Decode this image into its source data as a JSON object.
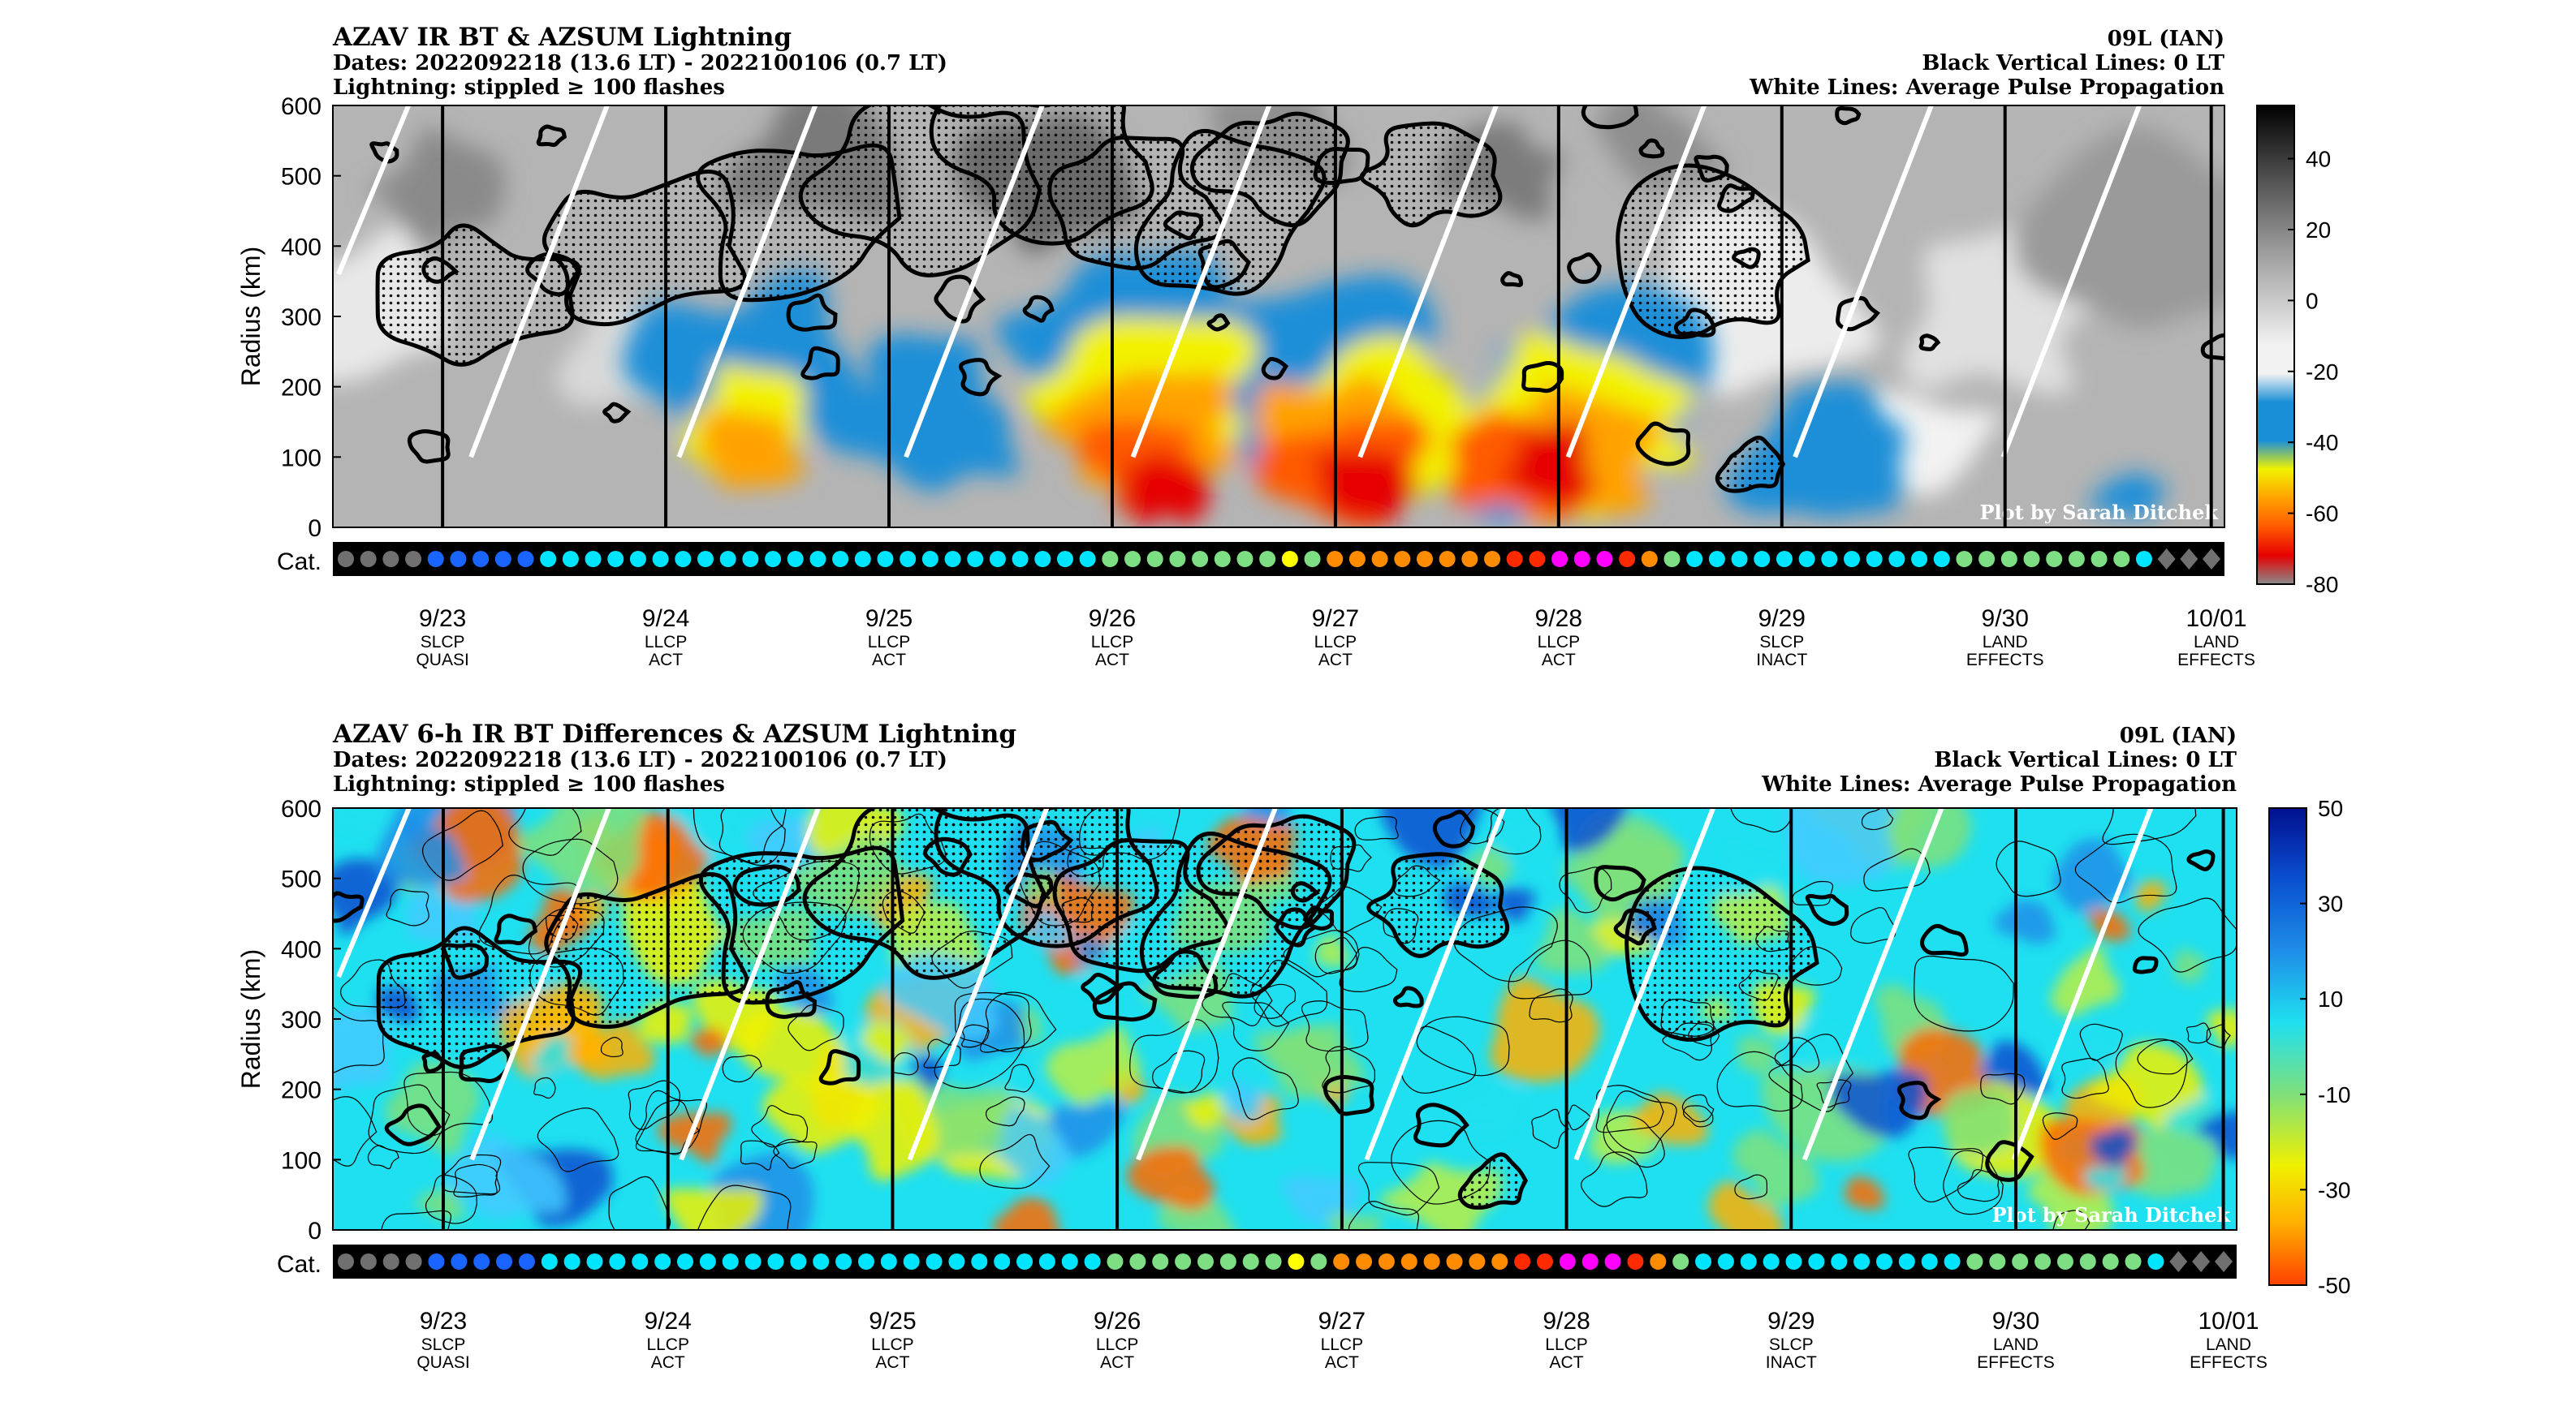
{
  "chart_data": [
    {
      "type": "heatmap",
      "title": "AZAV IR BT & AZSUM Lightning",
      "subtitle_dates": "Dates: 2022092218 (13.6 LT) - 2022100106 (0.7 LT)",
      "subtitle_lightning": "Lightning: stippled ≥ 100 flashes",
      "storm": "09L (IAN)",
      "note_black_lines": "Black Vertical Lines: 0 LT",
      "note_white_lines": "White Lines: Average Pulse Propagation",
      "credit": "Plot by Sarah Ditchek",
      "ylabel": "Radius (km)",
      "ylim": [
        0,
        600
      ],
      "yticks": [
        0,
        100,
        200,
        300,
        400,
        500,
        600
      ],
      "colorbar_ticks": [
        40,
        20,
        0,
        -20,
        -40,
        -60,
        -80
      ],
      "colorbar_range": [
        -80,
        55
      ],
      "colormap": "gray-to-jet (warm gray, cold blue-yellow-red)",
      "category_label": "Cat.",
      "x_ticks": [
        {
          "date": "9/23",
          "line1": "SLCP",
          "line2": "QUASI"
        },
        {
          "date": "9/24",
          "line1": "LLCP",
          "line2": "ACT"
        },
        {
          "date": "9/25",
          "line1": "LLCP",
          "line2": "ACT"
        },
        {
          "date": "9/26",
          "line1": "LLCP",
          "line2": "ACT"
        },
        {
          "date": "9/27",
          "line1": "LLCP",
          "line2": "ACT"
        },
        {
          "date": "9/28",
          "line1": "LLCP",
          "line2": "ACT"
        },
        {
          "date": "9/29",
          "line1": "SLCP",
          "line2": "INACT"
        },
        {
          "date": "9/30",
          "line1": "LAND",
          "line2": "EFFECTS"
        },
        {
          "date": "10/01",
          "line1": "LAND",
          "line2": "EFFECTS"
        }
      ]
    },
    {
      "type": "heatmap",
      "title": "AZAV 6-h IR BT Differences & AZSUM Lightning",
      "subtitle_dates": "Dates: 2022092218 (13.6 LT) - 2022100106 (0.7 LT)",
      "subtitle_lightning": "Lightning: stippled ≥ 100 flashes",
      "storm": "09L (IAN)",
      "note_black_lines": "Black Vertical Lines: 0 LT",
      "note_white_lines": "White Lines: Average Pulse Propagation",
      "credit": "Plot by Sarah Ditchek",
      "ylabel": "Radius (km)",
      "ylim": [
        0,
        600
      ],
      "yticks": [
        0,
        100,
        200,
        300,
        400,
        500,
        600
      ],
      "colorbar_ticks": [
        50,
        30,
        10,
        -10,
        -30,
        -50
      ],
      "colorbar_range": [
        -50,
        50
      ],
      "colormap": "jet reversed (blue positive, red negative)",
      "category_label": "Cat.",
      "x_ticks": [
        {
          "date": "9/23",
          "line1": "SLCP",
          "line2": "QUASI"
        },
        {
          "date": "9/24",
          "line1": "LLCP",
          "line2": "ACT"
        },
        {
          "date": "9/25",
          "line1": "LLCP",
          "line2": "ACT"
        },
        {
          "date": "9/26",
          "line1": "LLCP",
          "line2": "ACT"
        },
        {
          "date": "9/27",
          "line1": "LLCP",
          "line2": "ACT"
        },
        {
          "date": "9/28",
          "line1": "LLCP",
          "line2": "ACT"
        },
        {
          "date": "9/29",
          "line1": "SLCP",
          "line2": "INACT"
        },
        {
          "date": "9/30",
          "line1": "LAND",
          "line2": "EFFECTS"
        },
        {
          "date": "10/01",
          "line1": "LAND",
          "line2": "EFFECTS"
        }
      ]
    }
  ],
  "category_dots": [
    "#707070",
    "#707070",
    "#707070",
    "#707070",
    "#1a64ff",
    "#1a64ff",
    "#1a64ff",
    "#1a64ff",
    "#1a64ff",
    "#00e5ff",
    "#00e5ff",
    "#00e5ff",
    "#00e5ff",
    "#00e5ff",
    "#00e5ff",
    "#00e5ff",
    "#00e5ff",
    "#00e5ff",
    "#00e5ff",
    "#00e5ff",
    "#00e5ff",
    "#00e5ff",
    "#00e5ff",
    "#00e5ff",
    "#00e5ff",
    "#00e5ff",
    "#00e5ff",
    "#00e5ff",
    "#00e5ff",
    "#00e5ff",
    "#00e5ff",
    "#00e5ff",
    "#00e5ff",
    "#00e5ff",
    "#7dde84",
    "#7dde84",
    "#7dde84",
    "#7dde84",
    "#7dde84",
    "#7dde84",
    "#7dde84",
    "#7dde84",
    "#ffff00",
    "#7dde84",
    "#ff8c00",
    "#ff8c00",
    "#ff8c00",
    "#ff8c00",
    "#ff8c00",
    "#ff8c00",
    "#ff8c00",
    "#ff8c00",
    "#ff2a00",
    "#ff2a00",
    "#ff00ff",
    "#ff00ff",
    "#ff00ff",
    "#ff2a00",
    "#ff8c00",
    "#7dde84",
    "#00e5ff",
    "#00e5ff",
    "#00e5ff",
    "#00e5ff",
    "#00e5ff",
    "#00e5ff",
    "#00e5ff",
    "#00e5ff",
    "#00e5ff",
    "#00e5ff",
    "#00e5ff",
    "#00e5ff",
    "#7dde84",
    "#7dde84",
    "#7dde84",
    "#7dde84",
    "#7dde84",
    "#7dde84",
    "#7dde84",
    "#7dde84",
    "#00e5ff",
    "#707070",
    "#707070",
    "#707070"
  ],
  "day_ticks_frac": [
    0.058,
    0.176,
    0.294,
    0.412,
    0.53,
    0.648,
    0.766,
    0.884,
    1.0
  ],
  "zero_lt_lines_frac": [
    0.058,
    0.176,
    0.294,
    0.412,
    0.53,
    0.648,
    0.766,
    0.884,
    0.993
  ]
}
